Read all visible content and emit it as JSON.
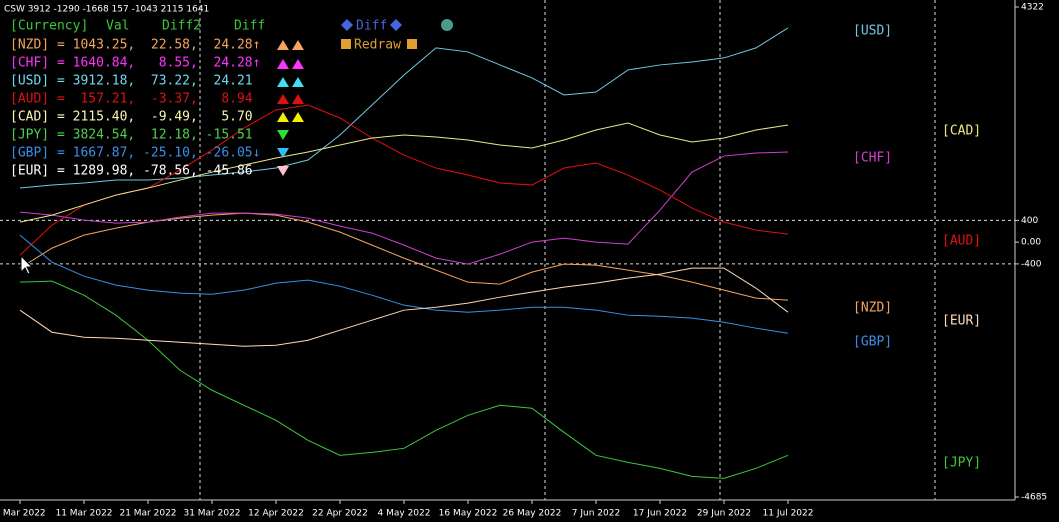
{
  "chart_data": {
    "type": "line",
    "title": "CSW 3912 -1290 -1668 157 -1043 2115 1641",
    "categories": [
      "1 Mar 2022",
      null,
      "11 Mar 2022",
      null,
      "21 Mar 2022",
      null,
      "31 Mar 2022",
      null,
      "12 Apr 2022",
      null,
      "22 Apr 2022",
      null,
      "4 May 2022",
      null,
      "16 May 2022",
      null,
      "26 May 2022",
      null,
      "7 Jun 2022",
      null,
      "17 Jun 2022",
      null,
      "29 Jun 2022",
      null,
      "11 Jul 2022"
    ],
    "ylim": [
      -4685,
      4322
    ],
    "yticks": [
      4322,
      400,
      {
        "value": 0,
        "label": "0.00"
      },
      -400,
      -4685
    ],
    "series": [
      {
        "name": "[NZD]",
        "color": "#f4a460",
        "values": [
          -478,
          -110,
          129,
          258,
          368,
          442,
          497,
          534,
          497,
          368,
          184,
          -55,
          -294,
          -515,
          -736,
          -773,
          -552,
          -405,
          -423,
          -515,
          -607,
          -736,
          -883,
          -1030,
          -1067
        ]
      },
      {
        "name": "[CHF]",
        "color": "#d040d0",
        "values": [
          552,
          497,
          405,
          350,
          368,
          460,
          534,
          534,
          515,
          442,
          294,
          166,
          -55,
          -294,
          -405,
          -221,
          0,
          74,
          0,
          -37,
          589,
          1288,
          1582,
          1638,
          1656
        ]
      },
      {
        "name": "[USD]",
        "color": "#70c8e8",
        "values": [
          994,
          1049,
          1086,
          1141,
          1141,
          1178,
          1233,
          1288,
          1362,
          1509,
          1969,
          2521,
          3073,
          3570,
          3496,
          3257,
          3018,
          2705,
          2760,
          3165,
          3257,
          3312,
          3386,
          3570,
          3938
        ]
      },
      {
        "name": "[AUD]",
        "color": "#e01010",
        "values": [
          -239,
          313,
          681,
          865,
          994,
          1325,
          1693,
          2098,
          2429,
          2521,
          2282,
          1914,
          1601,
          1362,
          1233,
          1086,
          1049,
          1362,
          1454,
          1233,
          957,
          626,
          368,
          221,
          147
        ]
      },
      {
        "name": "[CAD]",
        "color": "#eee88a",
        "values": [
          368,
          497,
          681,
          865,
          994,
          1141,
          1288,
          1417,
          1546,
          1656,
          1785,
          1914,
          1969,
          1932,
          1877,
          1785,
          1730,
          1877,
          2061,
          2190,
          1969,
          1840,
          1914,
          2061,
          2153
        ]
      },
      {
        "name": "[JPY]",
        "color": "#3cc83c",
        "values": [
          -736,
          -718,
          -975,
          -1343,
          -1803,
          -2355,
          -2723,
          -2999,
          -3275,
          -3643,
          -3919,
          -3864,
          -3790,
          -3459,
          -3183,
          -2999,
          -3054,
          -3496,
          -3919,
          -4048,
          -4158,
          -4306,
          -4342,
          -4158,
          -3919
        ]
      },
      {
        "name": "[GBP]",
        "color": "#3a90e8",
        "values": [
          129,
          -368,
          -626,
          -791,
          -883,
          -938,
          -957,
          -883,
          -754,
          -699,
          -810,
          -975,
          -1159,
          -1251,
          -1288,
          -1251,
          -1196,
          -1196,
          -1251,
          -1343,
          -1362,
          -1398,
          -1472,
          -1582,
          -1674
        ]
      },
      {
        "name": "[EUR]",
        "color": "#ffdab9",
        "values": [
          -1251,
          -1656,
          -1748,
          -1766,
          -1803,
          -1840,
          -1877,
          -1914,
          -1895,
          -1803,
          -1619,
          -1435,
          -1251,
          -1196,
          -1122,
          -1012,
          -920,
          -828,
          -754,
          -662,
          -589,
          -478,
          -478,
          -846,
          -1288
        ]
      }
    ]
  },
  "table": {
    "header": [
      "[Currency]",
      "Val",
      "Diff2",
      "Diff"
    ],
    "rows": [
      {
        "text": "[NZD] = 1043.25,  22.58,  24.28↑",
        "color": "#f4a460"
      },
      {
        "text": "[CHF] = 1640.84,   8.55,  24.28↑",
        "color": "#ff33ff"
      },
      {
        "text": "[USD] = 3912.18,  73.22,  24.21",
        "color": "#70d8f0"
      },
      {
        "text": "[AUD] =  157.21,  -3.37,   8.94",
        "color": "#e01010"
      },
      {
        "text": "[CAD] = 2115.40,  -9.49,   5.70",
        "color": "#f8f8b0"
      },
      {
        "text": "[JPY] = 3824.54,  12.18, -15.51",
        "color": "#50d050"
      },
      {
        "text": "[GBP] = 1667.87, -25.10, -26.05↓",
        "color": "#3a90e8"
      },
      {
        "text": "[EUR] = 1289.98, -78.56, -45.86",
        "color": "#ffffff"
      }
    ]
  },
  "buttons": [
    "Diff",
    "Redraw"
  ]
}
